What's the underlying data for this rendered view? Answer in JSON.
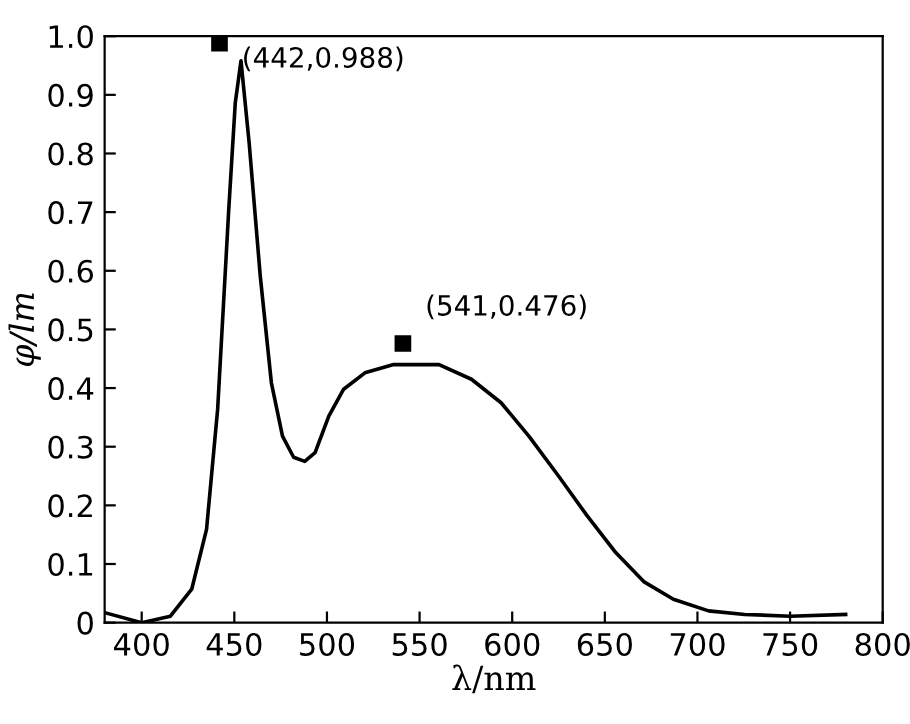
{
  "chart_data": {
    "type": "line",
    "xlabel": "λ/nm",
    "ylabel": "φ/lm",
    "series": [
      {
        "color": "#000000",
        "x": [
          380,
          400,
          415.5,
          427,
          435,
          441,
          447,
          450.5,
          453.6,
          458,
          464,
          470,
          476,
          482,
          488,
          493.6,
          501,
          509,
          520.5,
          536,
          560.5,
          578,
          594,
          609,
          625,
          640.5,
          656,
          671,
          687,
          706,
          725.5,
          750,
          780
        ],
        "values": [
          0.017,
          0,
          0.011,
          0.057,
          0.159,
          0.364,
          0.705,
          0.886,
          0.958,
          0.818,
          0.591,
          0.409,
          0.318,
          0.282,
          0.275,
          0.29,
          0.352,
          0.398,
          0.426,
          0.44,
          0.44,
          0.415,
          0.375,
          0.318,
          0.25,
          0.182,
          0.119,
          0.07,
          0.04,
          0.02,
          0.014,
          0.011,
          0.014
        ]
      }
    ],
    "xlim": [
      380,
      800
    ],
    "xticks": [
      400,
      450,
      500,
      550,
      600,
      650,
      700,
      750,
      800
    ],
    "ylim": [
      0,
      1
    ],
    "yticks": [
      0,
      0.1,
      0.2,
      0.3,
      0.4,
      0.5,
      0.6,
      0.7,
      0.8,
      0.9,
      {
        "value": 1,
        "label": "1.0"
      }
    ],
    "annotations": [
      {
        "text": "(442,0.988)",
        "x": 442,
        "y": 0.988
      },
      {
        "text": "(541,0.476)",
        "x": 541,
        "y": 0.476
      }
    ],
    "marker": "none",
    "line_style": "solid",
    "grid": false,
    "legend": false
  }
}
